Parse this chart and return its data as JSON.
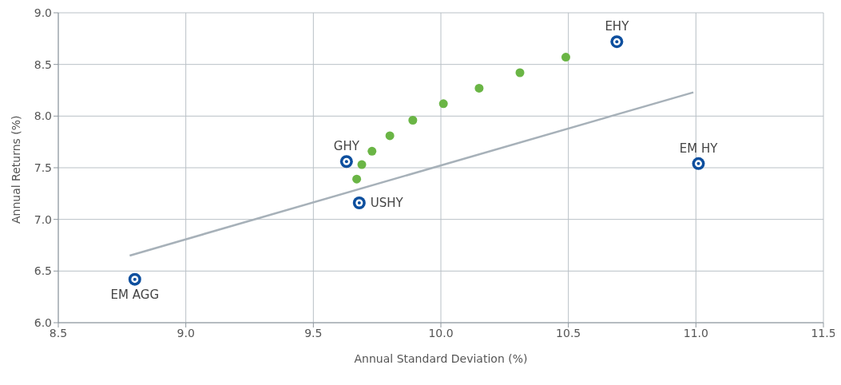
{
  "chart_data": {
    "type": "scatter",
    "xlabel": "Annual Standard Deviation (%)",
    "ylabel": "Annual Returns (%)",
    "xlim": [
      8.5,
      11.5
    ],
    "xticks": [
      8.5,
      {
        "value": 9,
        "label": "9.0"
      },
      9.5,
      {
        "value": 10,
        "label": "10.0"
      },
      10.5,
      {
        "value": 11,
        "label": "11.0"
      },
      11.5
    ],
    "ylim": [
      6.0,
      9.0
    ],
    "yticks": [
      {
        "value": 6,
        "label": "6.0"
      },
      6.5,
      {
        "value": 7,
        "label": "7.0"
      },
      7.5,
      {
        "value": 8,
        "label": "8.0"
      },
      8.5,
      {
        "value": 9,
        "label": "9.0"
      }
    ],
    "grid": true,
    "legend": false,
    "marker": "circle",
    "series": [
      {
        "type": "line",
        "marker": "none",
        "color": "#a7b1b9",
        "x": [
          8.78,
          10.99
        ],
        "values": [
          6.65,
          8.23
        ]
      },
      {
        "type": "scatter",
        "color": "#6ab545",
        "x": [
          9.67,
          9.69,
          9.73,
          9.8,
          9.89,
          10.01,
          10.15,
          10.31,
          10.49
        ],
        "values": [
          7.39,
          7.53,
          7.66,
          7.81,
          7.96,
          8.12,
          8.27,
          8.42,
          8.57
        ]
      },
      {
        "type": "scatter",
        "color": "#0d4f9e",
        "x": [
          10.69,
          11.01,
          9.63,
          9.68,
          8.8
        ],
        "values": [
          8.72,
          7.54,
          7.56,
          7.16,
          6.42
        ]
      }
    ],
    "annotations": [
      {
        "text": "EHY",
        "x": 10.69,
        "y": 8.72
      },
      {
        "text": "EM HY",
        "x": 11.01,
        "y": 7.54
      },
      {
        "text": "GHY",
        "x": 9.63,
        "y": 7.56
      },
      {
        "text": "USHY",
        "x": 9.68,
        "y": 7.16
      },
      {
        "text": "EM AGG",
        "x": 8.8,
        "y": 6.42
      }
    ]
  }
}
